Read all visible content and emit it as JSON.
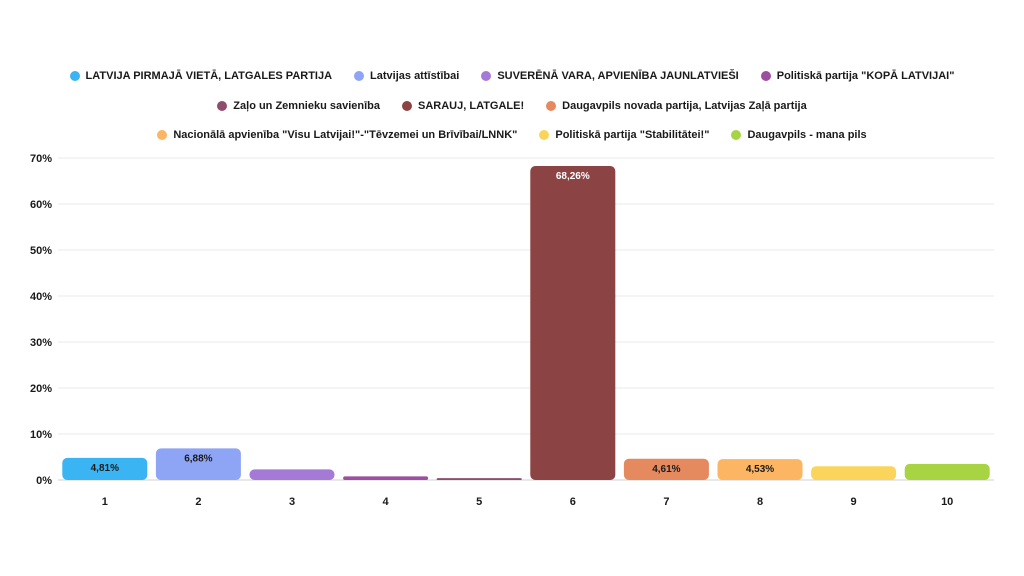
{
  "chart_data": {
    "type": "bar",
    "categories": [
      "1",
      "2",
      "3",
      "4",
      "5",
      "6",
      "7",
      "8",
      "9",
      "10"
    ],
    "values": [
      4.81,
      6.88,
      2.3,
      0.8,
      0.4,
      68.26,
      4.61,
      4.53,
      3.0,
      3.5
    ],
    "data_labels": [
      "4,81%",
      "6,88%",
      "",
      "",
      "",
      "68,26%",
      "4,61%",
      "4,53%",
      "",
      ""
    ],
    "series_names": [
      "LATVIJA PIRMAJĀ VIETĀ, LATGALES PARTIJA",
      "Latvijas attīstībai",
      "SUVERĒNĀ VARA, APVIENĪBA JAUNLATVIEŠI",
      "Politiskā partija \"KOPĀ LATVIJAI\"",
      "Zaļo un Zemnieku savienība",
      "SARAUJ, LATGALE!",
      "Daugavpils novada partija, Latvijas Zaļā partija",
      "Nacionālā apvienība \"Visu Latvijai!\"-\"Tēvzemei un Brīvībai/LNNK\"",
      "Politiskā partija \"Stabilitātei!\"",
      "Daugavpils - mana pils"
    ],
    "colors": [
      "#3ab4f2",
      "#8ea4f5",
      "#a57ad6",
      "#9b4f9e",
      "#8e4d6c",
      "#8b4343",
      "#e48a5e",
      "#fbb563",
      "#fbd55b",
      "#a8d343"
    ],
    "label_colors": [
      "#1a1a1a",
      "#1a1a1a",
      "",
      "",
      "",
      "#ffffff",
      "#1a1a1a",
      "#1a1a1a",
      "",
      ""
    ],
    "ylim": [
      0,
      70
    ],
    "yticks": [
      "0%",
      "10%",
      "20%",
      "30%",
      "40%",
      "50%",
      "60%",
      "70%"
    ],
    "legend_rows": [
      [
        0,
        1,
        2,
        3
      ],
      [
        4,
        5,
        6
      ],
      [
        7,
        8,
        9
      ]
    ],
    "legend_placement": "top",
    "grid": true
  }
}
